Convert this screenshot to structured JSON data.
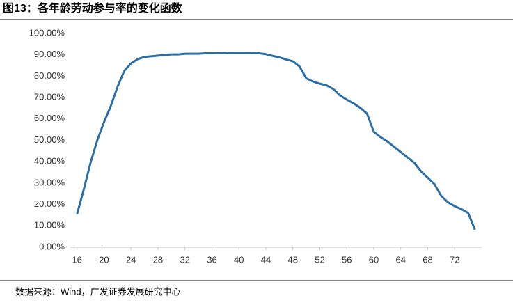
{
  "chart_data": {
    "type": "line",
    "title": "图13：各年龄劳动参与率的变化函数",
    "source": "数据来源：Wind，广发证券发展研究中心",
    "x": [
      16,
      17,
      18,
      19,
      20,
      21,
      22,
      23,
      24,
      25,
      26,
      27,
      28,
      29,
      30,
      31,
      32,
      33,
      34,
      35,
      36,
      37,
      38,
      39,
      40,
      41,
      42,
      43,
      44,
      45,
      46,
      47,
      48,
      49,
      50,
      51,
      52,
      53,
      54,
      55,
      56,
      57,
      58,
      59,
      60,
      61,
      62,
      63,
      64,
      65,
      66,
      67,
      68,
      69,
      70,
      71,
      72,
      73,
      74,
      75
    ],
    "values": [
      15.5,
      27,
      39.5,
      50,
      58.5,
      66,
      75,
      82.5,
      86,
      88,
      89,
      89.3,
      89.6,
      89.9,
      90.2,
      90.2,
      90.5,
      90.5,
      90.5,
      90.7,
      90.7,
      90.8,
      91,
      91,
      91,
      91,
      91,
      90.7,
      90.3,
      89.5,
      88.8,
      87.8,
      87,
      84.5,
      79,
      77.5,
      76.5,
      75.7,
      74,
      71,
      69,
      67.3,
      65.2,
      62.5,
      54,
      51.5,
      49.5,
      47,
      44.5,
      42,
      39.5,
      35.5,
      32.5,
      29.5,
      24,
      21,
      19.2,
      17.8,
      16,
      8.2
    ],
    "color": "#2a6ea5",
    "xlim": [
      15,
      76
    ],
    "xticks": [
      16,
      20,
      24,
      28,
      32,
      36,
      40,
      44,
      48,
      52,
      56,
      60,
      64,
      68,
      72
    ],
    "ylim": [
      0,
      100
    ],
    "yticks": [
      {
        "value": 0,
        "label": "0.00%"
      },
      {
        "value": 10,
        "label": "10.00%"
      },
      {
        "value": 20,
        "label": "20.00%"
      },
      {
        "value": 30,
        "label": "30.00%"
      },
      {
        "value": 40,
        "label": "40.00%"
      },
      {
        "value": 50,
        "label": "50.00%"
      },
      {
        "value": 60,
        "label": "60.00%"
      },
      {
        "value": 70,
        "label": "70.00%"
      },
      {
        "value": 80,
        "label": "80.00%"
      },
      {
        "value": 90,
        "label": "90.00%"
      },
      {
        "value": 100,
        "label": "100.00%"
      }
    ],
    "grid": false
  }
}
